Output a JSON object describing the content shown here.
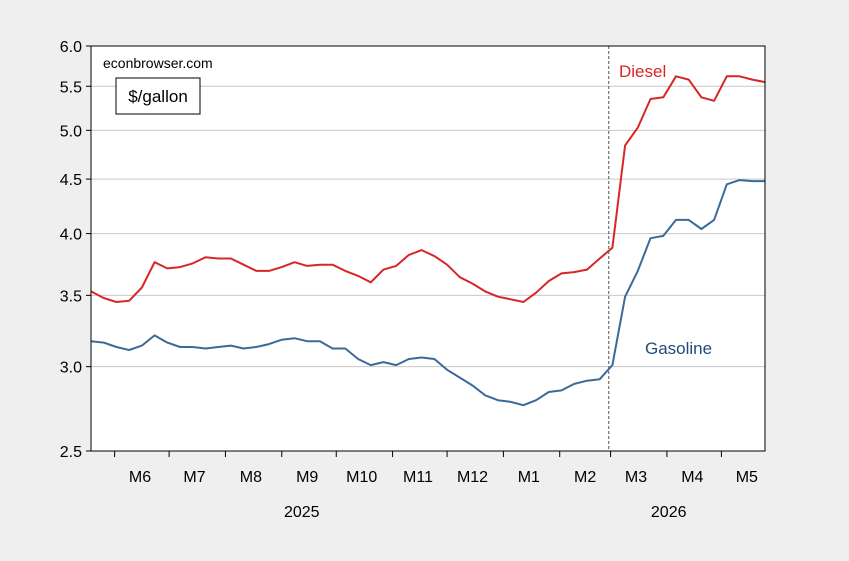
{
  "chart_data": {
    "type": "line",
    "source_note": "econbrowser.com",
    "units_label": "$/gallon",
    "y_scale": "log",
    "ylim": [
      2.5,
      6.0
    ],
    "y_ticks": [
      2.5,
      3.0,
      3.5,
      4.0,
      4.5,
      5.0,
      5.5,
      6.0
    ],
    "y_tick_labels": [
      "2.5",
      "3.0",
      "3.5",
      "4.0",
      "4.5",
      "5.0",
      "5.5",
      "6.0"
    ],
    "xlim": [
      "2025-05-19",
      "2026-05-25"
    ],
    "x_tick_labels": [
      {
        "date": "2025-06-01",
        "label": "M6"
      },
      {
        "date": "2025-07-01",
        "label": "M7"
      },
      {
        "date": "2025-08-01",
        "label": "M8"
      },
      {
        "date": "2025-09-01",
        "label": "M9"
      },
      {
        "date": "2025-10-01",
        "label": "M10"
      },
      {
        "date": "2025-11-01",
        "label": "M11"
      },
      {
        "date": "2025-12-01",
        "label": "M12"
      },
      {
        "date": "2026-01-01",
        "label": "M1"
      },
      {
        "date": "2026-02-01",
        "label": "M2"
      },
      {
        "date": "2026-03-01",
        "label": "M3"
      },
      {
        "date": "2026-04-01",
        "label": "M4"
      },
      {
        "date": "2026-05-01",
        "label": "M5"
      }
    ],
    "year_labels": [
      {
        "date": "2025-09-12",
        "label": "2025"
      },
      {
        "date": "2026-04-02",
        "label": "2026"
      }
    ],
    "vline": "2026-02-28",
    "grid": "horizontal",
    "legend": "inline labels",
    "series": [
      {
        "name": "Diesel",
        "color": "#d62728",
        "x": [
          "2025-05-19",
          "2025-05-26",
          "2025-06-02",
          "2025-06-09",
          "2025-06-16",
          "2025-06-23",
          "2025-06-30",
          "2025-07-07",
          "2025-07-14",
          "2025-07-21",
          "2025-07-28",
          "2025-08-04",
          "2025-08-11",
          "2025-08-18",
          "2025-08-25",
          "2025-09-01",
          "2025-09-08",
          "2025-09-15",
          "2025-09-22",
          "2025-09-29",
          "2025-10-06",
          "2025-10-13",
          "2025-10-20",
          "2025-10-27",
          "2025-11-03",
          "2025-11-10",
          "2025-11-17",
          "2025-11-24",
          "2025-12-01",
          "2025-12-08",
          "2025-12-15",
          "2025-12-22",
          "2025-12-29",
          "2026-01-05",
          "2026-01-12",
          "2026-01-19",
          "2026-01-26",
          "2026-02-02",
          "2026-02-09",
          "2026-02-16",
          "2026-02-23",
          "2026-03-02",
          "2026-03-09",
          "2026-03-16",
          "2026-03-23",
          "2026-03-30",
          "2026-04-06",
          "2026-04-13",
          "2026-04-20",
          "2026-04-27",
          "2026-05-04",
          "2026-05-11",
          "2026-05-18",
          "2026-05-25"
        ],
        "values": [
          3.53,
          3.48,
          3.45,
          3.46,
          3.56,
          3.76,
          3.71,
          3.72,
          3.75,
          3.8,
          3.79,
          3.79,
          3.74,
          3.69,
          3.69,
          3.72,
          3.76,
          3.73,
          3.74,
          3.74,
          3.69,
          3.65,
          3.6,
          3.7,
          3.73,
          3.82,
          3.86,
          3.81,
          3.74,
          3.64,
          3.59,
          3.53,
          3.49,
          3.47,
          3.45,
          3.52,
          3.61,
          3.67,
          3.68,
          3.7,
          3.79,
          3.88,
          4.84,
          5.03,
          5.35,
          5.37,
          5.62,
          5.58,
          5.37,
          5.33,
          5.62,
          5.62,
          5.58,
          5.55
        ]
      },
      {
        "name": "Gasoline",
        "color": "#3a6a9a",
        "x": [
          "2025-05-19",
          "2025-05-26",
          "2025-06-02",
          "2025-06-09",
          "2025-06-16",
          "2025-06-23",
          "2025-06-30",
          "2025-07-07",
          "2025-07-14",
          "2025-07-21",
          "2025-07-28",
          "2025-08-04",
          "2025-08-11",
          "2025-08-18",
          "2025-08-25",
          "2025-09-01",
          "2025-09-08",
          "2025-09-15",
          "2025-09-22",
          "2025-09-29",
          "2025-10-06",
          "2025-10-13",
          "2025-10-20",
          "2025-10-27",
          "2025-11-03",
          "2025-11-10",
          "2025-11-17",
          "2025-11-24",
          "2025-12-01",
          "2025-12-08",
          "2025-12-15",
          "2025-12-22",
          "2025-12-29",
          "2026-01-05",
          "2026-01-12",
          "2026-01-19",
          "2026-01-26",
          "2026-02-02",
          "2026-02-09",
          "2026-02-16",
          "2026-02-23",
          "2026-03-02",
          "2026-03-09",
          "2026-03-16",
          "2026-03-23",
          "2026-03-30",
          "2026-04-06",
          "2026-04-13",
          "2026-04-20",
          "2026-04-27",
          "2026-05-04",
          "2026-05-11",
          "2026-05-18",
          "2026-05-25"
        ],
        "values": [
          3.17,
          3.16,
          3.13,
          3.11,
          3.14,
          3.21,
          3.16,
          3.13,
          3.13,
          3.12,
          3.13,
          3.14,
          3.12,
          3.13,
          3.15,
          3.18,
          3.19,
          3.17,
          3.17,
          3.12,
          3.12,
          3.05,
          3.01,
          3.03,
          3.01,
          3.05,
          3.06,
          3.05,
          2.98,
          2.93,
          2.88,
          2.82,
          2.79,
          2.78,
          2.76,
          2.79,
          2.84,
          2.85,
          2.89,
          2.91,
          2.92,
          3.01,
          3.49,
          3.69,
          3.96,
          3.98,
          4.12,
          4.12,
          4.04,
          4.12,
          4.45,
          4.49,
          4.48,
          4.48
        ]
      }
    ]
  }
}
